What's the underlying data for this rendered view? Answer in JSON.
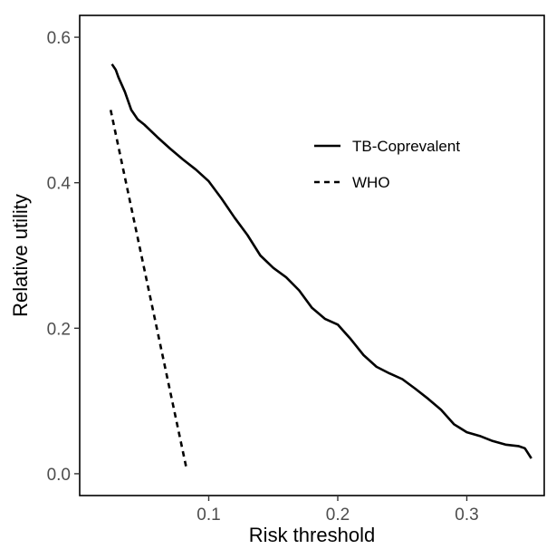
{
  "chart_data": {
    "type": "line",
    "title": "",
    "xlabel": "Risk threshold",
    "ylabel": "Relative utility",
    "xlim": [
      0.0,
      0.36
    ],
    "ylim": [
      -0.03,
      0.63
    ],
    "x_ticks": [
      0.1,
      0.2,
      0.3
    ],
    "x_tick_labels": [
      "0.1",
      "0.2",
      "0.3"
    ],
    "y_ticks": [
      0.0,
      0.2,
      0.4,
      0.6
    ],
    "y_tick_labels": [
      "0.0",
      "0.2",
      "0.4",
      "0.6"
    ],
    "grid": false,
    "legend_position": "top-right",
    "line_color": "#000000",
    "series": [
      {
        "name": "TB-Coprevalent",
        "style": "solid",
        "x": [
          0.025,
          0.028,
          0.03,
          0.035,
          0.04,
          0.045,
          0.05,
          0.06,
          0.07,
          0.08,
          0.09,
          0.1,
          0.11,
          0.12,
          0.13,
          0.14,
          0.15,
          0.16,
          0.17,
          0.18,
          0.19,
          0.2,
          0.21,
          0.22,
          0.23,
          0.24,
          0.25,
          0.26,
          0.27,
          0.28,
          0.29,
          0.3,
          0.31,
          0.32,
          0.33,
          0.34,
          0.345,
          0.35
        ],
        "y": [
          0.563,
          0.555,
          0.545,
          0.525,
          0.5,
          0.487,
          0.48,
          0.463,
          0.447,
          0.432,
          0.418,
          0.402,
          0.378,
          0.352,
          0.328,
          0.3,
          0.283,
          0.27,
          0.252,
          0.228,
          0.213,
          0.205,
          0.185,
          0.163,
          0.147,
          0.138,
          0.13,
          0.117,
          0.103,
          0.088,
          0.068,
          0.057,
          0.052,
          0.045,
          0.04,
          0.038,
          0.035,
          0.021
        ]
      },
      {
        "name": "WHO",
        "style": "dashed",
        "x": [
          0.024,
          0.083
        ],
        "y": [
          0.5,
          0.005
        ]
      }
    ]
  }
}
